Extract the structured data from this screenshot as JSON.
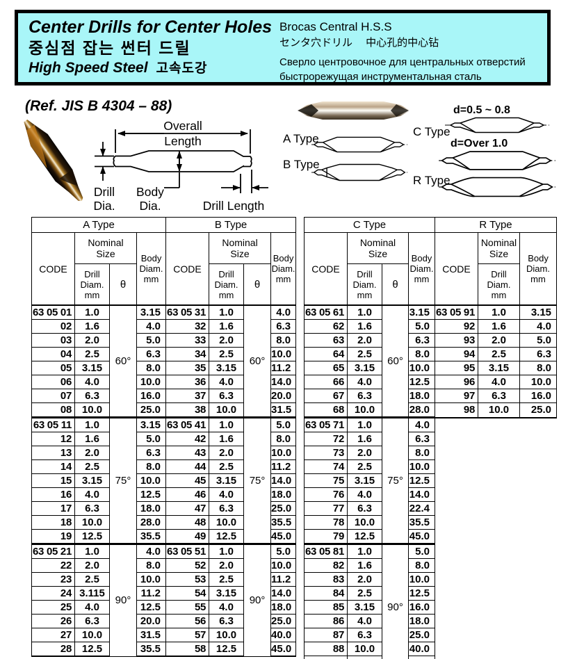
{
  "header_box": {
    "bg_color": "#a9f6f8",
    "title_en": "Center Drills for Center Holes",
    "title_ko": "중심점 잡는 썬터 드릴",
    "subtitle_en": "High Speed Steel",
    "subtitle_ko": "고속도강",
    "alt_titles": {
      "es": "Brocas Central H.S.S",
      "ja_zh": "センタ穴ドリル　 中心孔的中心钻",
      "ru_line1": "Сверло центровочное для  центральных отверстий",
      "ru_line2": "быстрорежущая  инструментальная сталь"
    }
  },
  "ref_note": "(Ref. JIS B 4304 – 88)",
  "diagram": {
    "dim_labels": {
      "overall_line1": "Overall",
      "overall_line2": "Length",
      "drill_dia_line1": "Drill",
      "drill_dia_line2": "Dia.",
      "body_dia_line1": "Body",
      "body_dia_line2": "Dia.",
      "drill_length": "Drill Length"
    },
    "type_labels": {
      "a": "A Type",
      "b": "B Type",
      "c": "C Type",
      "r": "R Type"
    },
    "d_notes": {
      "small": "d=0.5 ~ 0.8",
      "large": "d=Over  1.0"
    }
  },
  "table": {
    "headers": {
      "code": "CODE",
      "nominal_size": [
        "Nominal",
        "Size"
      ],
      "drill_diam": [
        "Drill",
        "Diam.",
        "mm"
      ],
      "drill_diam_r": [
        "Drill Diam.",
        "mm"
      ],
      "theta": "θ",
      "body_diam": [
        "Body",
        "Diam.",
        "mm"
      ]
    },
    "sections": [
      {
        "id": "A",
        "label": "A Type",
        "has_theta": true,
        "blocks": [
          {
            "code_prefix": "63 05",
            "theta": "60°",
            "rows": [
              [
                "01",
                "1.0",
                "3.15"
              ],
              [
                "02",
                "1.6",
                "4.0"
              ],
              [
                "03",
                "2.0",
                "5.0"
              ],
              [
                "04",
                "2.5",
                "6.3"
              ],
              [
                "05",
                "3.15",
                "8.0"
              ],
              [
                "06",
                "4.0",
                "10.0"
              ],
              [
                "07",
                "6.3",
                "16.0"
              ],
              [
                "08",
                "10.0",
                "25.0"
              ]
            ]
          },
          {
            "code_prefix": "63 05",
            "theta": "75°",
            "rows": [
              [
                "11",
                "1.0",
                "3.15"
              ],
              [
                "12",
                "1.6",
                "5.0"
              ],
              [
                "13",
                "2.0",
                "6.3"
              ],
              [
                "14",
                "2.5",
                "8.0"
              ],
              [
                "15",
                "3.15",
                "10.0"
              ],
              [
                "16",
                "4.0",
                "12.5"
              ],
              [
                "17",
                "6.3",
                "18.0"
              ],
              [
                "18",
                "10.0",
                "28.0"
              ],
              [
                "19",
                "12.5",
                "35.5"
              ]
            ]
          },
          {
            "code_prefix": "63 05",
            "theta": "90°",
            "rows": [
              [
                "21",
                "1.0",
                "4.0"
              ],
              [
                "22",
                "2.0",
                "8.0"
              ],
              [
                "23",
                "2.5",
                "10.0"
              ],
              [
                "24",
                "3.115",
                "11.2"
              ],
              [
                "25",
                "4.0",
                "12.5"
              ],
              [
                "26",
                "6.3",
                "20.0"
              ],
              [
                "27",
                "10.0",
                "31.5"
              ],
              [
                "28",
                "12.5",
                "35.5"
              ]
            ]
          }
        ]
      },
      {
        "id": "B",
        "label": "B Type",
        "has_theta": true,
        "blocks": [
          {
            "code_prefix": "63 05",
            "theta": "60°",
            "rows": [
              [
                "31",
                "1.0",
                "4.0"
              ],
              [
                "32",
                "1.6",
                "6.3"
              ],
              [
                "33",
                "2.0",
                "8.0"
              ],
              [
                "34",
                "2.5",
                "10.0"
              ],
              [
                "35",
                "3.15",
                "11.2"
              ],
              [
                "36",
                "4.0",
                "14.0"
              ],
              [
                "37",
                "6.3",
                "20.0"
              ],
              [
                "38",
                "10.0",
                "31.5"
              ]
            ]
          },
          {
            "code_prefix": "63 05",
            "theta": "75°",
            "rows": [
              [
                "41",
                "1.0",
                "5.0"
              ],
              [
                "42",
                "1.6",
                "8.0"
              ],
              [
                "43",
                "2.0",
                "10.0"
              ],
              [
                "44",
                "2.5",
                "11.2"
              ],
              [
                "45",
                "3.15",
                "14.0"
              ],
              [
                "46",
                "4.0",
                "18.0"
              ],
              [
                "47",
                "6.3",
                "25.0"
              ],
              [
                "48",
                "10.0",
                "35.5"
              ],
              [
                "49",
                "12.5",
                "45.0"
              ]
            ]
          },
          {
            "code_prefix": "63 05",
            "theta": "90°",
            "rows": [
              [
                "51",
                "1.0",
                "5.0"
              ],
              [
                "52",
                "2.0",
                "10.0"
              ],
              [
                "53",
                "2.5",
                "11.2"
              ],
              [
                "54",
                "3.15",
                "14.0"
              ],
              [
                "55",
                "4.0",
                "18.0"
              ],
              [
                "56",
                "6.3",
                "25.0"
              ],
              [
                "57",
                "10.0",
                "40.0"
              ],
              [
                "58",
                "12.5",
                "45.0"
              ]
            ]
          }
        ]
      },
      {
        "id": "C",
        "label": "C Type",
        "has_theta": true,
        "blocks": [
          {
            "code_prefix": "63 05",
            "theta": "60°",
            "rows": [
              [
                "61",
                "1.0",
                "3.15"
              ],
              [
                "62",
                "1.6",
                "5.0"
              ],
              [
                "63",
                "2.0",
                "6.3"
              ],
              [
                "64",
                "2.5",
                "8.0"
              ],
              [
                "65",
                "3.15",
                "10.0"
              ],
              [
                "66",
                "4.0",
                "12.5"
              ],
              [
                "67",
                "6.3",
                "18.0"
              ],
              [
                "68",
                "10.0",
                "28.0"
              ]
            ]
          },
          {
            "code_prefix": "63 05",
            "theta": "75°",
            "rows": [
              [
                "71",
                "1.0",
                "4.0"
              ],
              [
                "72",
                "1.6",
                "6.3"
              ],
              [
                "73",
                "2.0",
                "8.0"
              ],
              [
                "74",
                "2.5",
                "10.0"
              ],
              [
                "75",
                "3.15",
                "12.5"
              ],
              [
                "76",
                "4.0",
                "14.0"
              ],
              [
                "77",
                "6.3",
                "22.4"
              ],
              [
                "78",
                "10.0",
                "35.5"
              ],
              [
                "79",
                "12.5",
                "45.0"
              ]
            ]
          },
          {
            "code_prefix": "63 05",
            "theta": "90°",
            "rows": [
              [
                "81",
                "1.0",
                "5.0"
              ],
              [
                "82",
                "1.6",
                "8.0"
              ],
              [
                "83",
                "2.0",
                "10.0"
              ],
              [
                "84",
                "2.5",
                "12.5"
              ],
              [
                "85",
                "3.15",
                "16.0"
              ],
              [
                "86",
                "4.0",
                "18.0"
              ],
              [
                "87",
                "6.3",
                "25.0"
              ],
              [
                "88",
                "10.0",
                "40.0"
              ],
              [
                "89",
                "12.5",
                "45.0"
              ]
            ]
          }
        ]
      },
      {
        "id": "R",
        "label": "R Type",
        "has_theta": false,
        "blocks": [
          {
            "code_prefix": "63 05",
            "rows": [
              [
                "91",
                "1.0",
                "3.15"
              ],
              [
                "92",
                "1.6",
                "4.0"
              ],
              [
                "93",
                "2.0",
                "5.0"
              ],
              [
                "94",
                "2.5",
                "6.3"
              ],
              [
                "95",
                "3.15",
                "8.0"
              ],
              [
                "96",
                "4.0",
                "10.0"
              ],
              [
                "97",
                "6.3",
                "16.0"
              ],
              [
                "98",
                "10.0",
                "25.0"
              ]
            ]
          }
        ]
      }
    ]
  }
}
